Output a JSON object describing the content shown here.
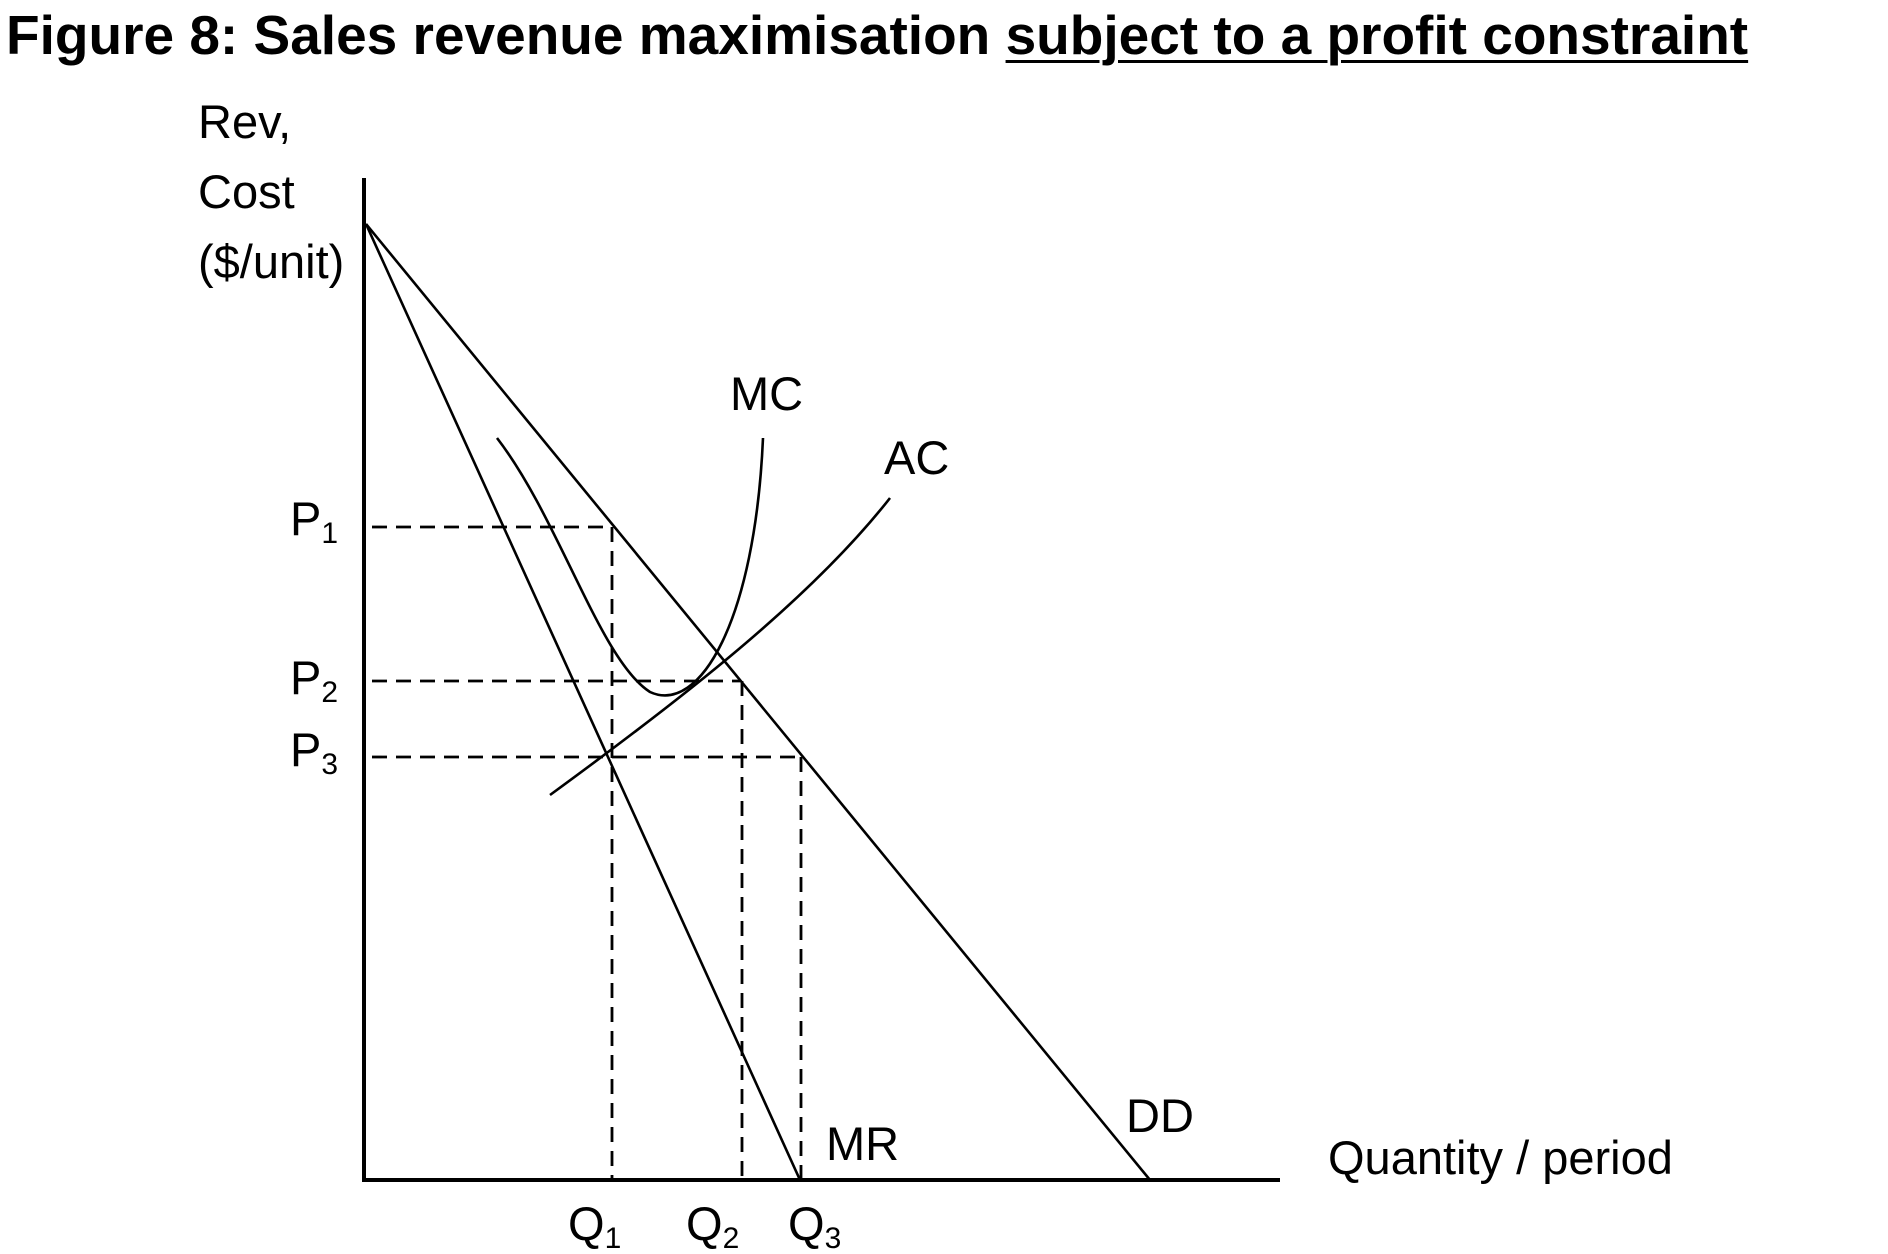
{
  "title": {
    "prefix": "Figure 8: Sales revenue maximisation ",
    "emphasis": "subject to a profit constraint"
  },
  "axes": {
    "y_label_lines": [
      "Rev,",
      "Cost",
      "($/unit)"
    ],
    "x_label": "Quantity / period"
  },
  "curves": {
    "mc": "MC",
    "ac": "AC",
    "mr": "MR",
    "dd": "DD"
  },
  "price_levels": [
    {
      "base": "P",
      "sub": "1"
    },
    {
      "base": "P",
      "sub": "2"
    },
    {
      "base": "P",
      "sub": "3"
    }
  ],
  "quantity_levels": [
    {
      "base": "Q",
      "sub": "1"
    },
    {
      "base": "Q",
      "sub": "2"
    },
    {
      "base": "Q",
      "sub": "3"
    }
  ]
}
